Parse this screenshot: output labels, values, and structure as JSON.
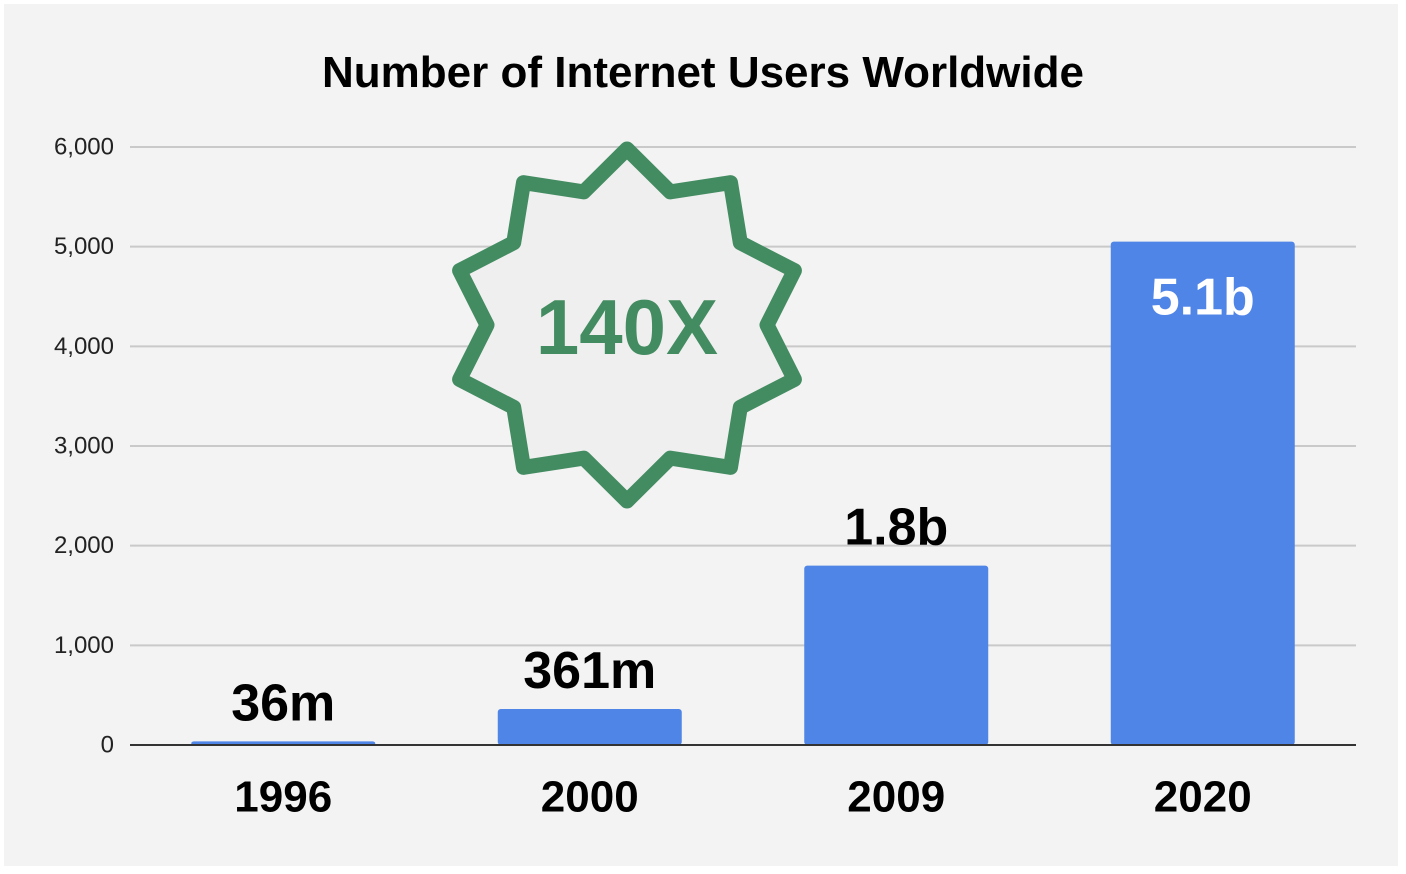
{
  "chart_data": {
    "type": "bar",
    "title": "Number of Internet Users Worldwide",
    "xlabel": "",
    "ylabel": "",
    "categories": [
      "1996",
      "2000",
      "2009",
      "2020"
    ],
    "values": [
      36,
      361,
      1800,
      5050
    ],
    "data_labels": [
      "36m",
      "361m",
      "1.8b",
      "5.1b"
    ],
    "ylim": [
      0,
      6000
    ],
    "yticks": [
      0,
      1000,
      2000,
      3000,
      4000,
      5000,
      6000
    ],
    "ytick_labels": [
      "0",
      "1,000",
      "2,000",
      "3,000",
      "4,000",
      "5,000",
      "6,000"
    ],
    "grid": true,
    "bar_color": "#5085e8",
    "annotation": {
      "text": "140X",
      "color": "#438c61"
    }
  }
}
